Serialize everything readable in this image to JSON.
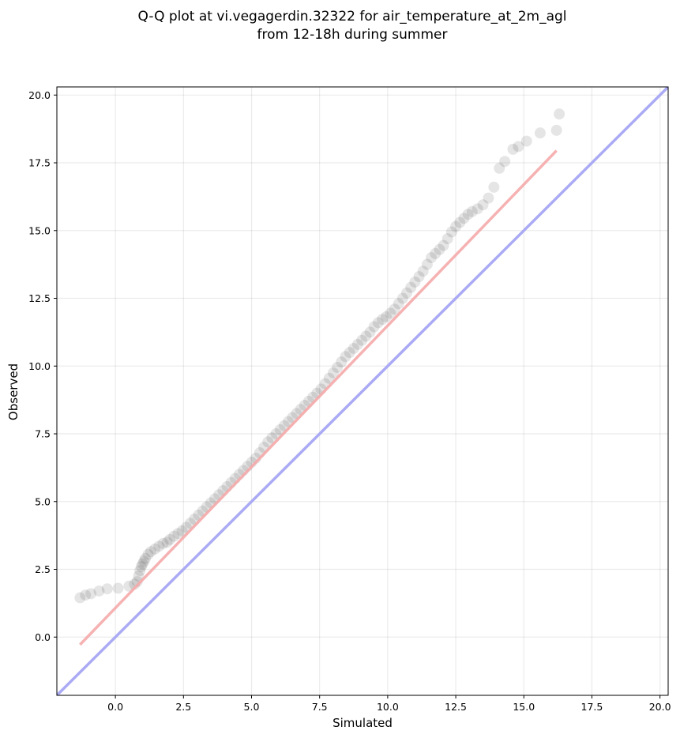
{
  "chart_data": {
    "type": "scatter",
    "title_lines": [
      "Q-Q plot at vi.vegagerdin.32322 for air_temperature_at_2m_agl",
      "from 12-18h during summer"
    ],
    "xlabel": "Simulated",
    "ylabel": "Observed",
    "xlim": [
      -2.15,
      20.3
    ],
    "ylim": [
      -2.15,
      20.3
    ],
    "xticks": [
      "0.0",
      "2.5",
      "5.0",
      "7.5",
      "10.0",
      "12.5",
      "15.0",
      "17.5",
      "20.0"
    ],
    "yticks": [
      "0.0",
      "2.5",
      "5.0",
      "7.5",
      "10.0",
      "12.5",
      "15.0",
      "17.5",
      "20.0"
    ],
    "xtick_values": [
      0,
      2.5,
      5,
      7.5,
      10,
      12.5,
      15,
      17.5,
      20
    ],
    "ytick_values": [
      0,
      2.5,
      5,
      7.5,
      10,
      12.5,
      15,
      17.5,
      20
    ],
    "grid": true,
    "identity_line": {
      "color": "#aaaaf5"
    },
    "fit_line": {
      "color": "#f5aaaa",
      "x": [
        -1.3,
        16.2
      ],
      "y": [
        -0.28,
        17.95
      ]
    },
    "series": [
      {
        "color": "#000000",
        "x": [
          -1.3,
          -1.1,
          -0.9,
          -0.6,
          -0.3,
          0.1,
          0.5,
          0.7,
          0.8,
          0.85,
          0.9,
          0.95,
          1.0,
          1.05,
          1.1,
          1.2,
          1.3,
          1.45,
          1.6,
          1.75,
          1.9,
          2.0,
          2.15,
          2.3,
          2.45,
          2.6,
          2.75,
          2.9,
          3.05,
          3.2,
          3.35,
          3.5,
          3.65,
          3.8,
          3.95,
          4.1,
          4.25,
          4.4,
          4.55,
          4.7,
          4.85,
          5.0,
          5.15,
          5.3,
          5.45,
          5.6,
          5.75,
          5.9,
          6.05,
          6.2,
          6.35,
          6.5,
          6.65,
          6.8,
          6.95,
          7.1,
          7.25,
          7.4,
          7.55,
          7.7,
          7.85,
          8.0,
          8.15,
          8.3,
          8.45,
          8.6,
          8.75,
          8.9,
          9.05,
          9.2,
          9.35,
          9.5,
          9.65,
          9.8,
          9.95,
          10.1,
          10.25,
          10.4,
          10.55,
          10.7,
          10.85,
          11.0,
          11.15,
          11.3,
          11.45,
          11.6,
          11.75,
          11.9,
          12.05,
          12.2,
          12.35,
          12.5,
          12.65,
          12.8,
          12.95,
          13.1,
          13.3,
          13.5,
          13.7,
          13.9,
          14.1,
          14.3,
          14.6,
          14.8,
          15.1,
          15.6,
          16.2,
          16.3
        ],
        "y": [
          1.45,
          1.55,
          1.6,
          1.7,
          1.78,
          1.8,
          1.88,
          1.95,
          2.05,
          2.25,
          2.45,
          2.6,
          2.7,
          2.8,
          2.9,
          3.05,
          3.15,
          3.25,
          3.35,
          3.45,
          3.5,
          3.6,
          3.72,
          3.82,
          3.92,
          4.05,
          4.2,
          4.35,
          4.5,
          4.65,
          4.8,
          4.95,
          5.1,
          5.25,
          5.4,
          5.55,
          5.7,
          5.85,
          6.0,
          6.15,
          6.3,
          6.45,
          6.6,
          6.8,
          7.0,
          7.2,
          7.35,
          7.5,
          7.65,
          7.8,
          7.95,
          8.1,
          8.25,
          8.4,
          8.55,
          8.7,
          8.85,
          9.0,
          9.15,
          9.35,
          9.55,
          9.75,
          9.95,
          10.15,
          10.35,
          10.5,
          10.65,
          10.8,
          10.95,
          11.1,
          11.25,
          11.45,
          11.6,
          11.72,
          11.82,
          11.95,
          12.1,
          12.3,
          12.5,
          12.7,
          12.9,
          13.1,
          13.3,
          13.5,
          13.75,
          14.0,
          14.15,
          14.3,
          14.45,
          14.7,
          14.95,
          15.15,
          15.3,
          15.45,
          15.6,
          15.7,
          15.8,
          15.95,
          16.2,
          16.6,
          17.3,
          17.55,
          18.0,
          18.1,
          18.3,
          18.6,
          18.7,
          19.3
        ]
      }
    ]
  }
}
